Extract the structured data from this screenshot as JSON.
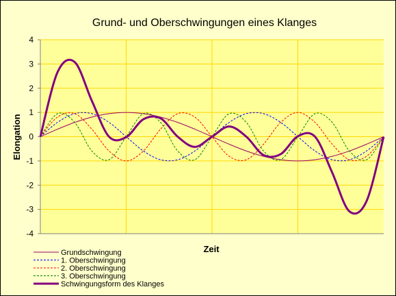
{
  "chart_data": {
    "type": "line",
    "title": "Grund- und Oberschwingungen eines Klanges",
    "xlabel": "Zeit",
    "ylabel": "Elongation",
    "ylim": [
      -4,
      4
    ],
    "xlim": [
      0,
      1
    ],
    "y_ticks": [
      -4,
      -3,
      -2,
      -1,
      0,
      1,
      2,
      3,
      4
    ],
    "y_tick_labels": [
      "-4",
      "-3",
      "-2",
      "-1",
      "0",
      "1",
      "2",
      "3",
      "4"
    ],
    "x_tick_labels": [],
    "grid": true,
    "legend_position": "bottom-left",
    "plot_background": "#ffff99",
    "page_background": "#ffffcc",
    "grid_color": "#ffd700",
    "x": [
      0,
      0.05,
      0.1,
      0.15,
      0.2,
      0.25,
      0.3,
      0.35,
      0.4,
      0.45,
      0.5,
      0.55,
      0.6,
      0.65,
      0.7,
      0.75,
      0.8,
      0.85,
      0.9,
      0.95,
      1
    ],
    "series": [
      {
        "name": "Grundschwingung",
        "color": "#990066",
        "dash": "solid",
        "width": 1,
        "values": [
          0,
          0.31,
          0.59,
          0.81,
          0.95,
          1,
          0.95,
          0.81,
          0.59,
          0.31,
          0,
          -0.31,
          -0.59,
          -0.81,
          -0.95,
          -1,
          -0.95,
          -0.81,
          -0.59,
          -0.31,
          0
        ]
      },
      {
        "name": "1. Oberschwingung",
        "color": "#0000ff",
        "dash": "dashed",
        "width": 1,
        "values": [
          0,
          0.59,
          0.95,
          0.95,
          0.59,
          0,
          -0.59,
          -0.95,
          -0.95,
          -0.59,
          0,
          0.59,
          0.95,
          0.95,
          0.59,
          0,
          -0.59,
          -0.95,
          -0.95,
          -0.59,
          0
        ]
      },
      {
        "name": "2. Oberschwingung",
        "color": "#ff0000",
        "dash": "dashed",
        "width": 1,
        "values": [
          0,
          0.81,
          0.95,
          0.31,
          -0.59,
          -1,
          -0.59,
          0.31,
          0.95,
          0.81,
          0,
          -0.81,
          -0.95,
          -0.31,
          0.59,
          1,
          0.59,
          -0.31,
          -0.95,
          -0.81,
          0
        ]
      },
      {
        "name": "3. Oberschwingung",
        "color": "#008000",
        "dash": "dashed",
        "width": 1,
        "values": [
          0,
          0.95,
          0.59,
          -0.59,
          -0.95,
          0,
          0.95,
          0.59,
          -0.59,
          -0.95,
          0,
          0.95,
          0.59,
          -0.59,
          -0.95,
          0,
          0.95,
          0.59,
          -0.59,
          -0.95,
          0
        ]
      },
      {
        "name": "Schwingungsform des Klanges",
        "color": "#800080",
        "dash": "solid",
        "width": 3,
        "values": [
          0,
          2.66,
          3.08,
          1.48,
          0,
          -0.02,
          0.72,
          0.76,
          0,
          -0.42,
          0,
          0.42,
          0,
          -0.76,
          -0.72,
          0.02,
          0,
          -1.48,
          -3.08,
          -2.66,
          0
        ]
      }
    ]
  }
}
